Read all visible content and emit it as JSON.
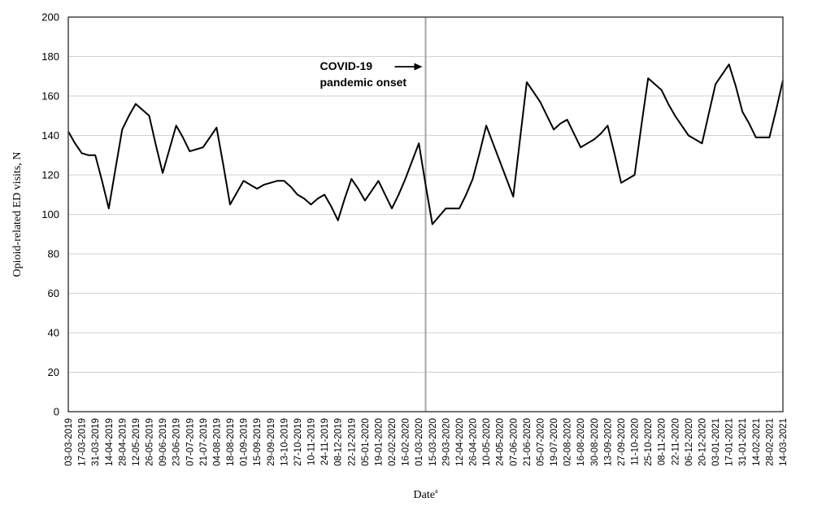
{
  "chart_data": {
    "type": "line",
    "title": "",
    "xlabel": "Date",
    "xlabel_superscript": "a",
    "ylabel": "Opioid-related ED visits, N",
    "ylim": [
      0,
      200
    ],
    "yticks": [
      0,
      20,
      40,
      60,
      80,
      100,
      120,
      140,
      160,
      180,
      200
    ],
    "grid": "horizontal",
    "x": [
      "03-03-2019",
      "10-03-2019",
      "17-03-2019",
      "24-03-2019",
      "31-03-2019",
      "07-04-2019",
      "14-04-2019",
      "21-04-2019",
      "28-04-2019",
      "05-05-2019",
      "12-05-2019",
      "19-05-2019",
      "26-05-2019",
      "02-06-2019",
      "09-06-2019",
      "16-06-2019",
      "23-06-2019",
      "30-06-2019",
      "07-07-2019",
      "14-07-2019",
      "21-07-2019",
      "28-07-2019",
      "04-08-2019",
      "11-08-2019",
      "18-08-2019",
      "25-08-2019",
      "01-09-2019",
      "08-09-2019",
      "15-09-2019",
      "22-09-2019",
      "29-09-2019",
      "06-10-2019",
      "13-10-2019",
      "20-10-2019",
      "27-10-2019",
      "03-11-2019",
      "10-11-2019",
      "17-11-2019",
      "24-11-2019",
      "01-12-2019",
      "08-12-2019",
      "15-12-2019",
      "22-12-2019",
      "29-12-2019",
      "05-01-2020",
      "12-01-2020",
      "19-01-2020",
      "26-01-2020",
      "02-02-2020",
      "09-02-2020",
      "16-02-2020",
      "23-02-2020",
      "01-03-2020",
      "08-03-2020",
      "15-03-2020",
      "22-03-2020",
      "29-03-2020",
      "05-04-2020",
      "12-04-2020",
      "19-04-2020",
      "26-04-2020",
      "03-05-2020",
      "10-05-2020",
      "17-05-2020",
      "24-05-2020",
      "31-05-2020",
      "07-06-2020",
      "14-06-2020",
      "21-06-2020",
      "28-06-2020",
      "05-07-2020",
      "12-07-2020",
      "19-07-2020",
      "26-07-2020",
      "02-08-2020",
      "09-08-2020",
      "16-08-2020",
      "23-08-2020",
      "30-08-2020",
      "06-09-2020",
      "13-09-2020",
      "20-09-2020",
      "27-09-2020",
      "04-10-2020",
      "11-10-2020",
      "18-10-2020",
      "25-10-2020",
      "01-11-2020",
      "08-11-2020",
      "15-11-2020",
      "22-11-2020",
      "29-11-2020",
      "06-12-2020",
      "13-12-2020",
      "20-12-2020",
      "27-12-2020",
      "03-01-2021",
      "10-01-2021",
      "17-01-2021",
      "24-01-2021",
      "31-01-2021",
      "07-02-2021",
      "14-02-2021",
      "21-02-2021",
      "28-02-2021",
      "07-03-2021",
      "14-03-2021"
    ],
    "x_tick_labels": [
      "03-03-2019",
      "17-03-2019",
      "31-03-2019",
      "14-04-2019",
      "28-04-2019",
      "12-05-2019",
      "26-05-2019",
      "09-06-2019",
      "23-06-2019",
      "07-07-2019",
      "21-07-2019",
      "04-08-2019",
      "18-08-2019",
      "01-09-2019",
      "15-09-2019",
      "29-09-2019",
      "13-10-2019",
      "27-10-2019",
      "10-11-2019",
      "24-11-2019",
      "08-12-2019",
      "22-12-2019",
      "05-01-2020",
      "19-01-2020",
      "02-02-2020",
      "16-02-2020",
      "01-03-2020",
      "15-03-2020",
      "29-03-2020",
      "12-04-2020",
      "26-04-2020",
      "10-05-2020",
      "24-05-2020",
      "07-06-2020",
      "21-06-2020",
      "05-07-2020",
      "19-07-2020",
      "02-08-2020",
      "16-08-2020",
      "30-08-2020",
      "13-09-2020",
      "27-09-2020",
      "11-10-2020",
      "25-10-2020",
      "08-11-2020",
      "22-11-2020",
      "06-12-2020",
      "20-12-2020",
      "03-01-2021",
      "17-01-2021",
      "31-01-2021",
      "14-02-2021",
      "28-02-2021",
      "14-03-2021"
    ],
    "series": [
      {
        "values": [
          142,
          136,
          131,
          130,
          130,
          117,
          103,
          123,
          143,
          150,
          156,
          153,
          150,
          135,
          121,
          133,
          145,
          139,
          132,
          133,
          134,
          139,
          144,
          125,
          105,
          111,
          117,
          115,
          113,
          115,
          116,
          117,
          117,
          114,
          110,
          108,
          105,
          108,
          110,
          104,
          97,
          108,
          118,
          113,
          107,
          112,
          117,
          110,
          103,
          110,
          118,
          127,
          136,
          115,
          95,
          99,
          103,
          103,
          103,
          110,
          118,
          131,
          145,
          136,
          127,
          118,
          109,
          138,
          167,
          162,
          157,
          150,
          143,
          146,
          148,
          141,
          134,
          136,
          138,
          141,
          145,
          131,
          116,
          118,
          120,
          145,
          169,
          166,
          163,
          156,
          150,
          145,
          140,
          138,
          136,
          151,
          166,
          171,
          176,
          165,
          152,
          146,
          139,
          139,
          139,
          153,
          168
        ],
        "color": "#000000"
      }
    ],
    "annotations": [
      {
        "line1": "COVID-19",
        "line2": "pandemic onset",
        "at_x": "08-03-2020",
        "arrow": "→"
      }
    ],
    "reference_line": {
      "x": "08-03-2020",
      "color": "#a6a6a6"
    }
  }
}
